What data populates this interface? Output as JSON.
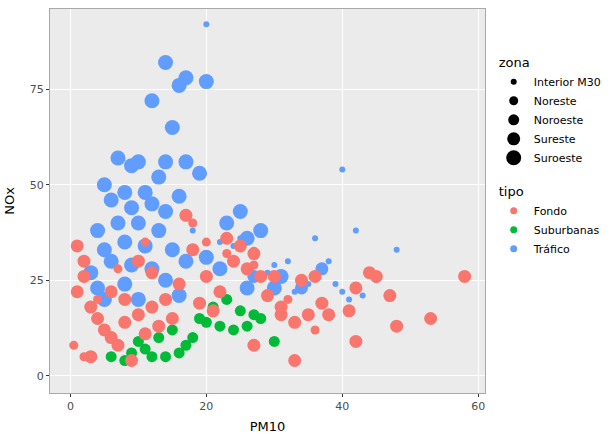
{
  "chart_data": {
    "type": "scatter",
    "x_label": "PM10",
    "y_label": "NOx",
    "xlim": [
      -3,
      61
    ],
    "ylim": [
      -4.5,
      96
    ],
    "xticks": [
      0,
      20,
      40,
      60
    ],
    "yticks": [
      0,
      25,
      50,
      75
    ],
    "grid": true,
    "legend": "right",
    "size_legend": {
      "title": "zona",
      "levels": [
        "Interior M30",
        "Noreste",
        "Noroeste",
        "Sureste",
        "Suroeste"
      ]
    },
    "color_legend": {
      "title": "tipo",
      "levels": [
        "Fondo",
        "Suburbanas",
        "Tráfico"
      ],
      "colors": [
        "#F8766D",
        "#00BA38",
        "#619CFF"
      ]
    },
    "series": [
      {
        "name": "Tráfico",
        "zona": "Suroeste",
        "x": [
          14,
          17,
          16,
          20,
          12,
          15,
          7,
          10,
          9,
          14,
          17,
          13,
          5,
          8,
          11,
          16,
          19,
          6,
          9,
          12,
          14,
          7,
          10,
          4,
          13,
          8,
          11,
          5,
          15,
          25,
          23,
          28,
          26,
          6,
          9,
          12,
          3,
          17,
          20,
          22,
          4,
          8,
          14,
          26,
          30,
          31,
          5,
          10,
          16
        ],
        "y": [
          82,
          78,
          76,
          77,
          72,
          65,
          57,
          56,
          55,
          56,
          56,
          52,
          50,
          48,
          48,
          47,
          53,
          46,
          44,
          45,
          43,
          40,
          40,
          38,
          38,
          35,
          34,
          33,
          33,
          43,
          40,
          38,
          36,
          30,
          29,
          28,
          27,
          30,
          31,
          28,
          23,
          24,
          25,
          23,
          23,
          26,
          20,
          20,
          21
        ]
      },
      {
        "name": "Tráfico",
        "zona": "Sureste",
        "x": [
          34,
          37,
          27
        ],
        "y": [
          23,
          28,
          26
        ]
      },
      {
        "name": "Tráfico",
        "zona": "Interior M30",
        "x": [
          20,
          40,
          42,
          48,
          36,
          32,
          38,
          45,
          40,
          35,
          43,
          18,
          22,
          24,
          27,
          30,
          29,
          33,
          39,
          41,
          25
        ],
        "y": [
          92,
          54,
          38,
          33,
          36,
          30,
          30,
          25,
          22,
          24,
          21,
          38,
          35,
          34,
          33,
          29,
          27,
          22,
          24,
          20,
          36
        ]
      },
      {
        "name": "Suburbanas",
        "zona": "Noroeste",
        "x": [
          6,
          8,
          9,
          12,
          14,
          16,
          7,
          10,
          18,
          20,
          22,
          24,
          26,
          28,
          30,
          25,
          23,
          27,
          21,
          11,
          15,
          19,
          13,
          17
        ],
        "y": [
          5,
          4,
          6,
          5,
          5,
          6,
          8,
          9,
          10,
          14,
          13,
          12,
          13,
          15,
          9,
          17,
          20,
          16,
          18,
          7,
          12,
          15,
          10,
          8
        ]
      },
      {
        "name": "Fondo",
        "zona": "Sureste",
        "x": [
          1,
          2,
          2,
          1,
          3,
          4,
          5,
          6,
          7,
          8,
          10,
          12,
          14,
          16,
          17,
          18,
          20,
          22,
          24,
          26,
          28,
          30,
          25,
          23,
          27,
          10,
          12,
          6,
          8,
          15,
          3,
          9,
          11,
          13,
          19,
          21,
          29,
          31,
          33,
          35,
          37,
          34,
          36,
          44,
          45,
          42,
          38,
          41,
          47,
          53,
          48,
          58,
          42,
          33,
          27,
          31
        ],
        "y": [
          34,
          30,
          26,
          22,
          18,
          15,
          12,
          10,
          8,
          14,
          16,
          18,
          20,
          24,
          42,
          33,
          26,
          22,
          30,
          28,
          26,
          26,
          34,
          36,
          32,
          30,
          27,
          22,
          20,
          15,
          5,
          4,
          11,
          13,
          19,
          17,
          21,
          18,
          14,
          16,
          19,
          25,
          26,
          27,
          26,
          23,
          16,
          17,
          21,
          15,
          13,
          26,
          9,
          4,
          8,
          16
        ]
      },
      {
        "name": "Fondo",
        "zona": "Noreste",
        "x": [
          0.5,
          2,
          4,
          7,
          11,
          18,
          20,
          23,
          27,
          32,
          36
        ],
        "y": [
          8,
          5,
          20,
          28,
          35,
          40,
          35,
          32,
          29,
          20,
          12
        ]
      }
    ]
  }
}
